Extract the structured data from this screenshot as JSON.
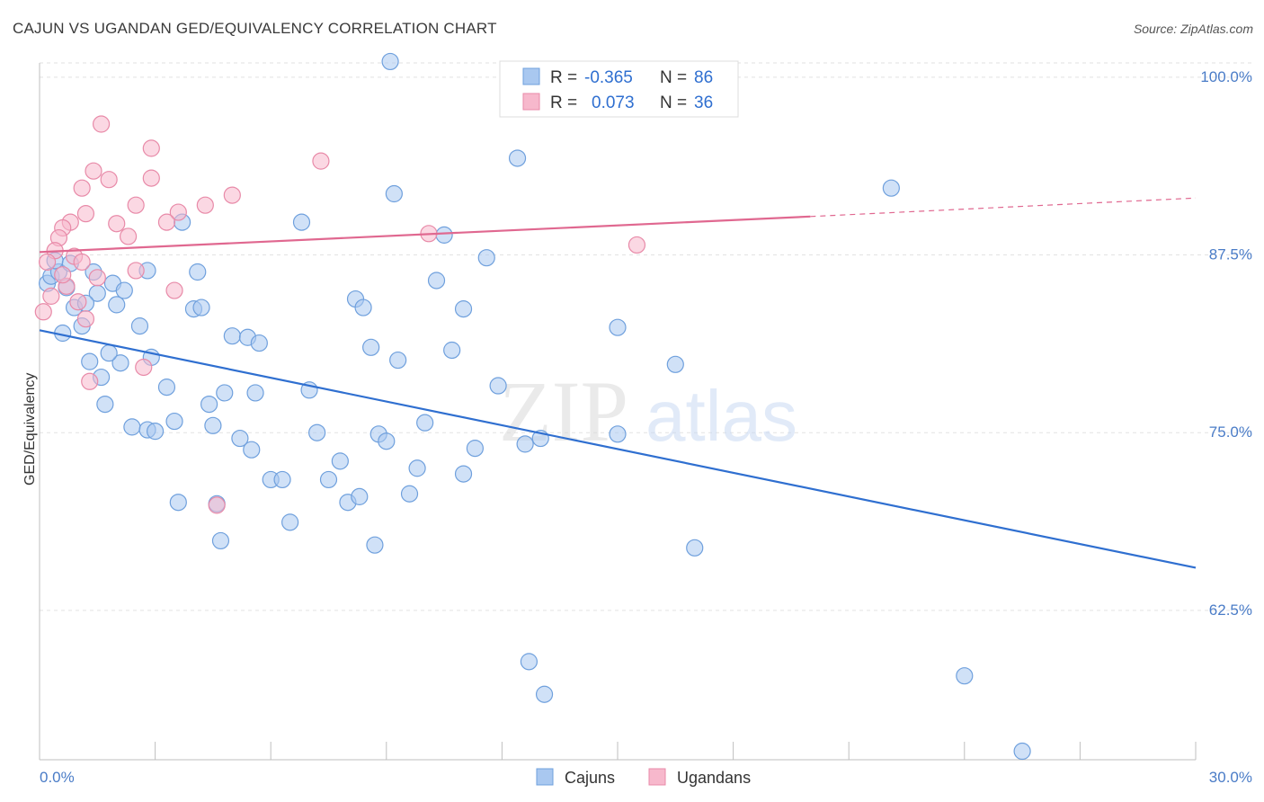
{
  "title": "CAJUN VS UGANDAN GED/EQUIVALENCY CORRELATION CHART",
  "source": "Source: ZipAtlas.com",
  "watermark": {
    "zip": "ZIP",
    "atlas": "atlas"
  },
  "legend": {
    "rows": [
      {
        "r_label": "R = ",
        "r_value": "-0.365",
        "n_label": "N = ",
        "n_value": "86",
        "color": "#a9c8f0"
      },
      {
        "r_label": "R = ",
        "r_value": "0.073",
        "n_label": "N = ",
        "n_value": "36",
        "color": "#f7b8cc"
      }
    ]
  },
  "bottom_legend": [
    {
      "label": "Cajuns",
      "color": "#a9c8f0"
    },
    {
      "label": "Ugandans",
      "color": "#f7b8cc"
    }
  ],
  "chart_data": {
    "type": "scatter",
    "xlabel": "",
    "ylabel": "GED/Equivalency",
    "xlim": [
      0,
      30
    ],
    "ylim": [
      52,
      101
    ],
    "x_tick_labels": [
      "0.0%",
      "30.0%"
    ],
    "y_ticks": [
      {
        "value": 100,
        "label": "100.0%"
      },
      {
        "value": 87.5,
        "label": "87.5%"
      },
      {
        "value": 75,
        "label": "75.0%"
      },
      {
        "value": 62.5,
        "label": "62.5%"
      }
    ],
    "grid": true,
    "series": [
      {
        "name": "Cajuns",
        "color": "#a9c8f0",
        "stroke": "#6fa0dd",
        "trend": {
          "x": [
            0,
            30
          ],
          "y": [
            82.2,
            65.5
          ],
          "color": "#2f6fd0"
        },
        "points": [
          [
            9.1,
            101.1
          ],
          [
            0.2,
            85.5
          ],
          [
            0.3,
            86.0
          ],
          [
            0.5,
            86.3
          ],
          [
            0.6,
            82.0
          ],
          [
            0.7,
            85.2
          ],
          [
            1.4,
            86.3
          ],
          [
            0.9,
            83.8
          ],
          [
            1.1,
            82.5
          ],
          [
            1.5,
            84.8
          ],
          [
            1.9,
            85.5
          ],
          [
            2.2,
            85.0
          ],
          [
            2.6,
            82.5
          ],
          [
            2.8,
            86.4
          ],
          [
            1.3,
            80.0
          ],
          [
            1.6,
            78.9
          ],
          [
            1.7,
            77.0
          ],
          [
            2.1,
            79.9
          ],
          [
            2.4,
            75.4
          ],
          [
            2.8,
            75.2
          ],
          [
            3.0,
            75.1
          ],
          [
            2.9,
            80.3
          ],
          [
            3.3,
            78.2
          ],
          [
            3.5,
            75.8
          ],
          [
            3.7,
            89.8
          ],
          [
            4.1,
            86.3
          ],
          [
            4.0,
            83.7
          ],
          [
            4.2,
            83.8
          ],
          [
            4.4,
            77.0
          ],
          [
            4.5,
            75.5
          ],
          [
            4.8,
            77.8
          ],
          [
            5.0,
            81.8
          ],
          [
            5.2,
            74.6
          ],
          [
            5.4,
            81.7
          ],
          [
            5.6,
            77.8
          ],
          [
            5.7,
            81.3
          ],
          [
            5.5,
            73.8
          ],
          [
            6.0,
            71.7
          ],
          [
            6.3,
            71.7
          ],
          [
            6.5,
            68.7
          ],
          [
            6.8,
            89.8
          ],
          [
            7.0,
            78.0
          ],
          [
            7.2,
            75.0
          ],
          [
            7.5,
            71.7
          ],
          [
            7.8,
            73.0
          ],
          [
            8.0,
            70.1
          ],
          [
            8.2,
            84.4
          ],
          [
            8.4,
            83.8
          ],
          [
            8.3,
            70.5
          ],
          [
            8.6,
            81.0
          ],
          [
            8.8,
            74.9
          ],
          [
            9.0,
            74.4
          ],
          [
            9.3,
            80.1
          ],
          [
            9.6,
            70.7
          ],
          [
            9.8,
            72.5
          ],
          [
            10.0,
            75.7
          ],
          [
            10.3,
            85.7
          ],
          [
            10.5,
            88.9
          ],
          [
            10.7,
            80.8
          ],
          [
            11.0,
            83.7
          ],
          [
            11.0,
            72.1
          ],
          [
            11.3,
            73.9
          ],
          [
            11.6,
            87.3
          ],
          [
            11.9,
            78.3
          ],
          [
            12.4,
            94.3
          ],
          [
            12.6,
            74.2
          ],
          [
            13.0,
            74.6
          ],
          [
            12.7,
            58.9
          ],
          [
            13.1,
            56.6
          ],
          [
            15.0,
            82.4
          ],
          [
            15.0,
            74.9
          ],
          [
            16.5,
            79.8
          ],
          [
            17.0,
            66.9
          ],
          [
            22.1,
            92.2
          ],
          [
            24.0,
            57.9
          ],
          [
            25.5,
            52.6
          ],
          [
            3.6,
            70.1
          ],
          [
            4.6,
            70.0
          ],
          [
            4.7,
            67.4
          ],
          [
            8.7,
            67.1
          ],
          [
            9.2,
            91.8
          ],
          [
            1.2,
            84.1
          ],
          [
            0.4,
            87.1
          ],
          [
            2.0,
            84.0
          ],
          [
            1.8,
            80.6
          ],
          [
            0.8,
            86.9
          ]
        ]
      },
      {
        "name": "Ugandans",
        "color": "#f7b8cc",
        "stroke": "#e88aa8",
        "trend": {
          "x": [
            0,
            20
          ],
          "y": [
            87.7,
            90.2
          ],
          "color": "#e06890",
          "dashed_to": [
            30,
            91.5
          ]
        },
        "points": [
          [
            1.6,
            96.7
          ],
          [
            2.9,
            95.0
          ],
          [
            1.4,
            93.4
          ],
          [
            1.8,
            92.8
          ],
          [
            2.9,
            92.9
          ],
          [
            1.1,
            92.2
          ],
          [
            4.3,
            91.0
          ],
          [
            5.0,
            91.7
          ],
          [
            7.3,
            94.1
          ],
          [
            2.5,
            91.0
          ],
          [
            3.6,
            90.5
          ],
          [
            3.3,
            89.8
          ],
          [
            0.8,
            89.8
          ],
          [
            0.6,
            89.4
          ],
          [
            1.2,
            90.4
          ],
          [
            2.0,
            89.7
          ],
          [
            2.3,
            88.8
          ],
          [
            0.5,
            88.7
          ],
          [
            0.4,
            87.8
          ],
          [
            0.9,
            87.4
          ],
          [
            1.1,
            87.0
          ],
          [
            0.2,
            87.0
          ],
          [
            2.5,
            86.4
          ],
          [
            0.7,
            85.3
          ],
          [
            1.0,
            84.2
          ],
          [
            3.5,
            85.0
          ],
          [
            1.2,
            83.0
          ],
          [
            1.3,
            78.6
          ],
          [
            2.7,
            79.6
          ],
          [
            4.6,
            69.9
          ],
          [
            10.1,
            89.0
          ],
          [
            15.5,
            88.2
          ],
          [
            0.1,
            83.5
          ],
          [
            0.3,
            84.6
          ],
          [
            1.5,
            85.9
          ],
          [
            0.6,
            86.1
          ]
        ]
      }
    ]
  }
}
